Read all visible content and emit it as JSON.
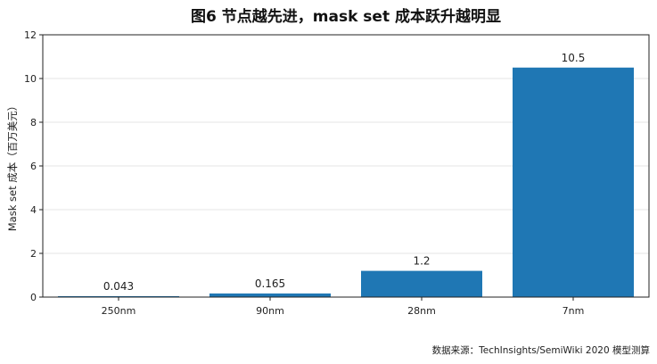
{
  "chart_data": {
    "type": "bar",
    "title": "图6  节点越先进，mask set 成本跃升越明显",
    "xlabel": "",
    "ylabel": "Mask set 成本（百万美元）",
    "categories": [
      "250nm",
      "90nm",
      "28nm",
      "7nm"
    ],
    "values": [
      0.043,
      0.165,
      1.2,
      10.5
    ],
    "data_labels": [
      "0.043",
      "0.165",
      "1.2",
      "10.5"
    ],
    "ylim": [
      0,
      12
    ],
    "yticks": [
      0,
      2,
      4,
      6,
      8,
      10,
      12
    ],
    "grid": true,
    "bar_color": "#1f77b4"
  },
  "source_note": "数据来源：TechInsights/SemiWiki 2020 模型测算"
}
